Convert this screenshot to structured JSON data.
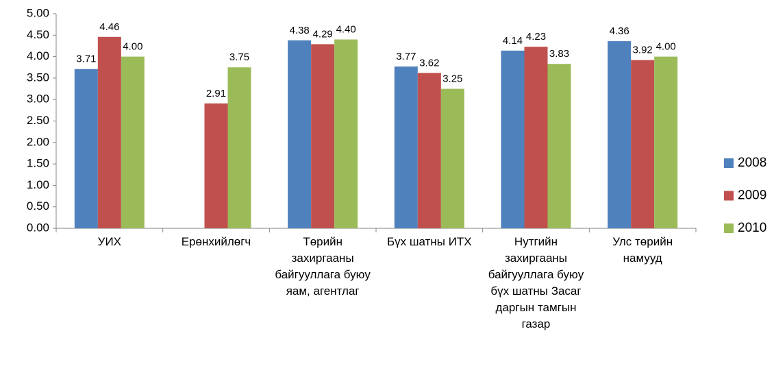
{
  "chart_data": {
    "type": "bar",
    "categories": [
      "УИХ",
      "Ерөнхийлөгч",
      "Төрийн захиргааны байгууллага буюу яам, агентлаг",
      "Бүх шатны ИТХ",
      "Нутгийн захиргааны байгууллага буюу бүх шатны Засаг даргын тамгын газар",
      "Улс төрийн намууд"
    ],
    "series": [
      {
        "name": "2008",
        "color": "#4f81bd",
        "values": [
          3.71,
          null,
          4.38,
          3.77,
          4.14,
          4.36
        ],
        "value_labels": [
          "3.71",
          null,
          "4.38",
          "3.77",
          "4.14",
          "4.36"
        ]
      },
      {
        "name": "2009",
        "color": "#c0504d",
        "values": [
          4.46,
          2.91,
          4.29,
          3.62,
          4.23,
          3.92
        ],
        "value_labels": [
          "4.46",
          "2.91",
          "4.29",
          "3.62",
          "4.23",
          "3.92"
        ]
      },
      {
        "name": "2010",
        "color": "#9bbb59",
        "values": [
          4.0,
          3.75,
          4.4,
          3.25,
          3.83,
          4.0
        ],
        "value_labels": [
          "4.00",
          "3.75",
          "4.40",
          "3.25",
          "3.83",
          "4.00"
        ]
      }
    ],
    "ylim": [
      0,
      5
    ],
    "yticks": [
      {
        "value": 0,
        "label": "0.00"
      },
      {
        "value": 0.5,
        "label": "0.50"
      },
      {
        "value": 1,
        "label": "1.00"
      },
      {
        "value": 1.5,
        "label": "1.50"
      },
      {
        "value": 2,
        "label": "2.00"
      },
      {
        "value": 2.5,
        "label": "2.50"
      },
      {
        "value": 3,
        "label": "3.00"
      },
      {
        "value": 3.5,
        "label": "3.50"
      },
      {
        "value": 4,
        "label": "4.00"
      },
      {
        "value": 4.5,
        "label": "4.50"
      },
      {
        "value": 5,
        "label": "5.00"
      }
    ],
    "grid": false,
    "legend": "right"
  }
}
